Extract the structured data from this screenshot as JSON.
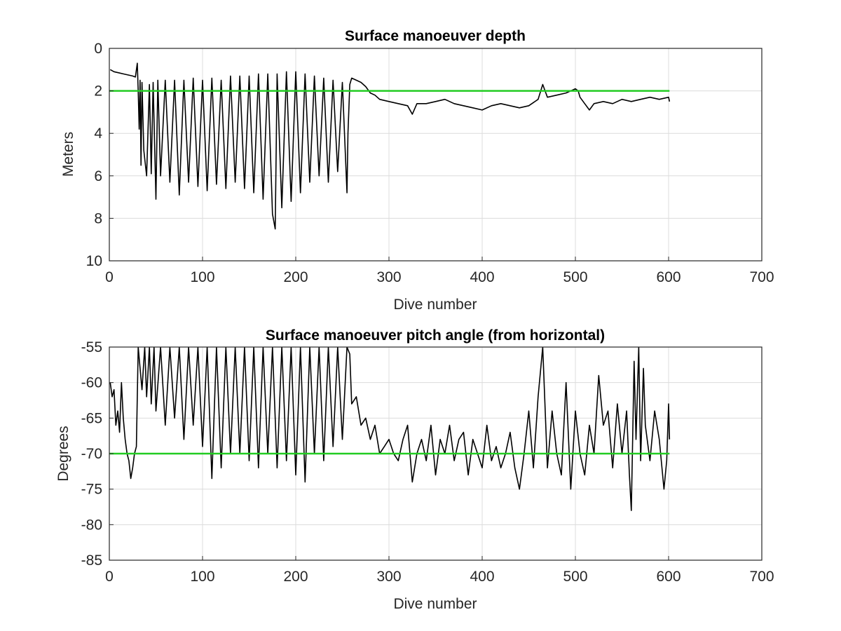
{
  "chart_data": [
    {
      "type": "line",
      "title": "Surface manoeuver depth",
      "xlabel": "Dive number",
      "ylabel": "Meters",
      "xlim": [
        0,
        700
      ],
      "ylim": [
        0,
        10
      ],
      "y_reversed": true,
      "grid": true,
      "xticks": [
        "0",
        "100",
        "200",
        "300",
        "400",
        "500",
        "600",
        "700"
      ],
      "yticks": [
        "0",
        "2",
        "4",
        "6",
        "8",
        "10"
      ],
      "xtick_values": [
        0,
        100,
        200,
        300,
        400,
        500,
        600,
        700
      ],
      "ytick_values": [
        0,
        2,
        4,
        6,
        8,
        10
      ],
      "series": [
        {
          "color": "#000000",
          "x": [
            1,
            5,
            10,
            15,
            20,
            25,
            28,
            30,
            31,
            32,
            33,
            34,
            35,
            37,
            40,
            43,
            45,
            47,
            50,
            52,
            55,
            60,
            65,
            70,
            75,
            80,
            85,
            90,
            95,
            100,
            105,
            110,
            115,
            120,
            125,
            130,
            135,
            140,
            145,
            150,
            155,
            160,
            165,
            170,
            175,
            178,
            180,
            185,
            190,
            195,
            200,
            205,
            210,
            215,
            220,
            225,
            230,
            235,
            240,
            245,
            250,
            255,
            256,
            258,
            260,
            265,
            270,
            275,
            280,
            285,
            290,
            300,
            310,
            320,
            325,
            330,
            340,
            350,
            360,
            370,
            380,
            390,
            400,
            410,
            420,
            430,
            440,
            450,
            460,
            465,
            470,
            480,
            490,
            500,
            503,
            505,
            510,
            515,
            520,
            530,
            540,
            550,
            560,
            570,
            580,
            590,
            600,
            601
          ],
          "y": [
            1.0,
            1.1,
            1.15,
            1.2,
            1.25,
            1.3,
            1.35,
            0.7,
            2.0,
            3.8,
            1.5,
            5.5,
            1.6,
            4.8,
            6.0,
            1.7,
            5.9,
            1.6,
            7.1,
            1.5,
            6.0,
            1.5,
            6.3,
            1.5,
            6.9,
            1.5,
            6.3,
            1.4,
            6.5,
            1.5,
            6.7,
            1.4,
            6.4,
            1.5,
            6.6,
            1.3,
            6.3,
            1.3,
            6.6,
            1.3,
            6.8,
            1.2,
            7.1,
            1.2,
            7.8,
            8.5,
            1.2,
            7.5,
            1.1,
            7.2,
            1.1,
            6.8,
            1.2,
            6.3,
            1.3,
            6.0,
            1.4,
            6.3,
            1.5,
            5.8,
            1.6,
            6.8,
            4.0,
            1.7,
            1.4,
            1.5,
            1.6,
            1.8,
            2.1,
            2.2,
            2.4,
            2.5,
            2.6,
            2.7,
            3.1,
            2.6,
            2.6,
            2.5,
            2.4,
            2.6,
            2.7,
            2.8,
            2.9,
            2.7,
            2.6,
            2.7,
            2.8,
            2.7,
            2.4,
            1.7,
            2.3,
            2.2,
            2.1,
            1.9,
            2.0,
            2.3,
            2.6,
            2.9,
            2.6,
            2.5,
            2.6,
            2.4,
            2.5,
            2.4,
            2.3,
            2.4,
            2.3,
            2.5
          ]
        },
        {
          "color": "#22cc22",
          "x": [
            0,
            601
          ],
          "y": [
            2,
            2
          ]
        }
      ]
    },
    {
      "type": "line",
      "title": "Surface manoeuver pitch angle (from horizontal)",
      "xlabel": "Dive number",
      "ylabel": "Degrees",
      "xlim": [
        0,
        700
      ],
      "ylim": [
        -85,
        -55
      ],
      "grid": true,
      "xticks": [
        "0",
        "100",
        "200",
        "300",
        "400",
        "500",
        "600",
        "700"
      ],
      "yticks": [
        "-55",
        "-60",
        "-65",
        "-70",
        "-75",
        "-80",
        "-85"
      ],
      "xtick_values": [
        0,
        100,
        200,
        300,
        400,
        500,
        600,
        700
      ],
      "ytick_values": [
        -55,
        -60,
        -65,
        -70,
        -75,
        -80,
        -85
      ],
      "series": [
        {
          "color": "#000000",
          "x": [
            1,
            3,
            5,
            7,
            9,
            11,
            13,
            15,
            17,
            19,
            21,
            23,
            25,
            27,
            29,
            31,
            35,
            38,
            40,
            43,
            45,
            48,
            50,
            55,
            60,
            65,
            70,
            75,
            80,
            85,
            90,
            95,
            100,
            105,
            110,
            115,
            120,
            125,
            130,
            135,
            140,
            145,
            150,
            155,
            160,
            165,
            170,
            175,
            180,
            185,
            190,
            195,
            200,
            205,
            210,
            215,
            220,
            225,
            230,
            235,
            240,
            245,
            250,
            255,
            258,
            260,
            265,
            270,
            275,
            280,
            285,
            290,
            295,
            300,
            305,
            310,
            315,
            320,
            325,
            330,
            335,
            340,
            345,
            350,
            355,
            360,
            365,
            370,
            375,
            380,
            385,
            390,
            395,
            400,
            405,
            410,
            415,
            420,
            425,
            430,
            435,
            440,
            445,
            450,
            455,
            460,
            465,
            470,
            475,
            480,
            485,
            490,
            495,
            500,
            505,
            510,
            515,
            520,
            525,
            530,
            535,
            540,
            545,
            550,
            555,
            558,
            560,
            563,
            565,
            568,
            570,
            573,
            575,
            580,
            585,
            590,
            595,
            598,
            600,
            601
          ],
          "y": [
            -60,
            -62,
            -61,
            -66,
            -64,
            -67,
            -60,
            -65,
            -68,
            -70,
            -71,
            -73.5,
            -72,
            -70,
            -69,
            -55,
            -61,
            -55,
            -62,
            -55,
            -63,
            -55,
            -64,
            -55,
            -66,
            -55,
            -65,
            -55,
            -68,
            -55,
            -66,
            -55,
            -69,
            -55,
            -73.5,
            -55,
            -72,
            -55,
            -70,
            -55,
            -70,
            -55,
            -71,
            -55,
            -72,
            -55,
            -70,
            -55,
            -72,
            -55,
            -71,
            -55,
            -73,
            -55,
            -74,
            -55,
            -70,
            -55,
            -71,
            -55,
            -69,
            -55,
            -68,
            -55,
            -56,
            -63,
            -62,
            -66,
            -65,
            -68,
            -66,
            -70,
            -69,
            -68,
            -70,
            -71,
            -68,
            -66,
            -74,
            -70,
            -68,
            -71,
            -66,
            -73,
            -68,
            -70,
            -66,
            -71,
            -68,
            -67,
            -73,
            -68,
            -70,
            -72,
            -66,
            -71,
            -69,
            -72,
            -70,
            -67,
            -72,
            -75,
            -70,
            -64,
            -72,
            -62,
            -55,
            -72,
            -64,
            -70,
            -73,
            -60,
            -75,
            -64,
            -70,
            -73,
            -66,
            -70,
            -59,
            -66,
            -64,
            -72,
            -63,
            -70,
            -64,
            -73,
            -78,
            -57,
            -68,
            -55,
            -71,
            -58,
            -66,
            -71,
            -64,
            -68,
            -75,
            -71,
            -63,
            -68
          ],
          "clip": true
        },
        {
          "color": "#22cc22",
          "x": [
            0,
            601
          ],
          "y": [
            -70,
            -70
          ]
        }
      ]
    }
  ]
}
